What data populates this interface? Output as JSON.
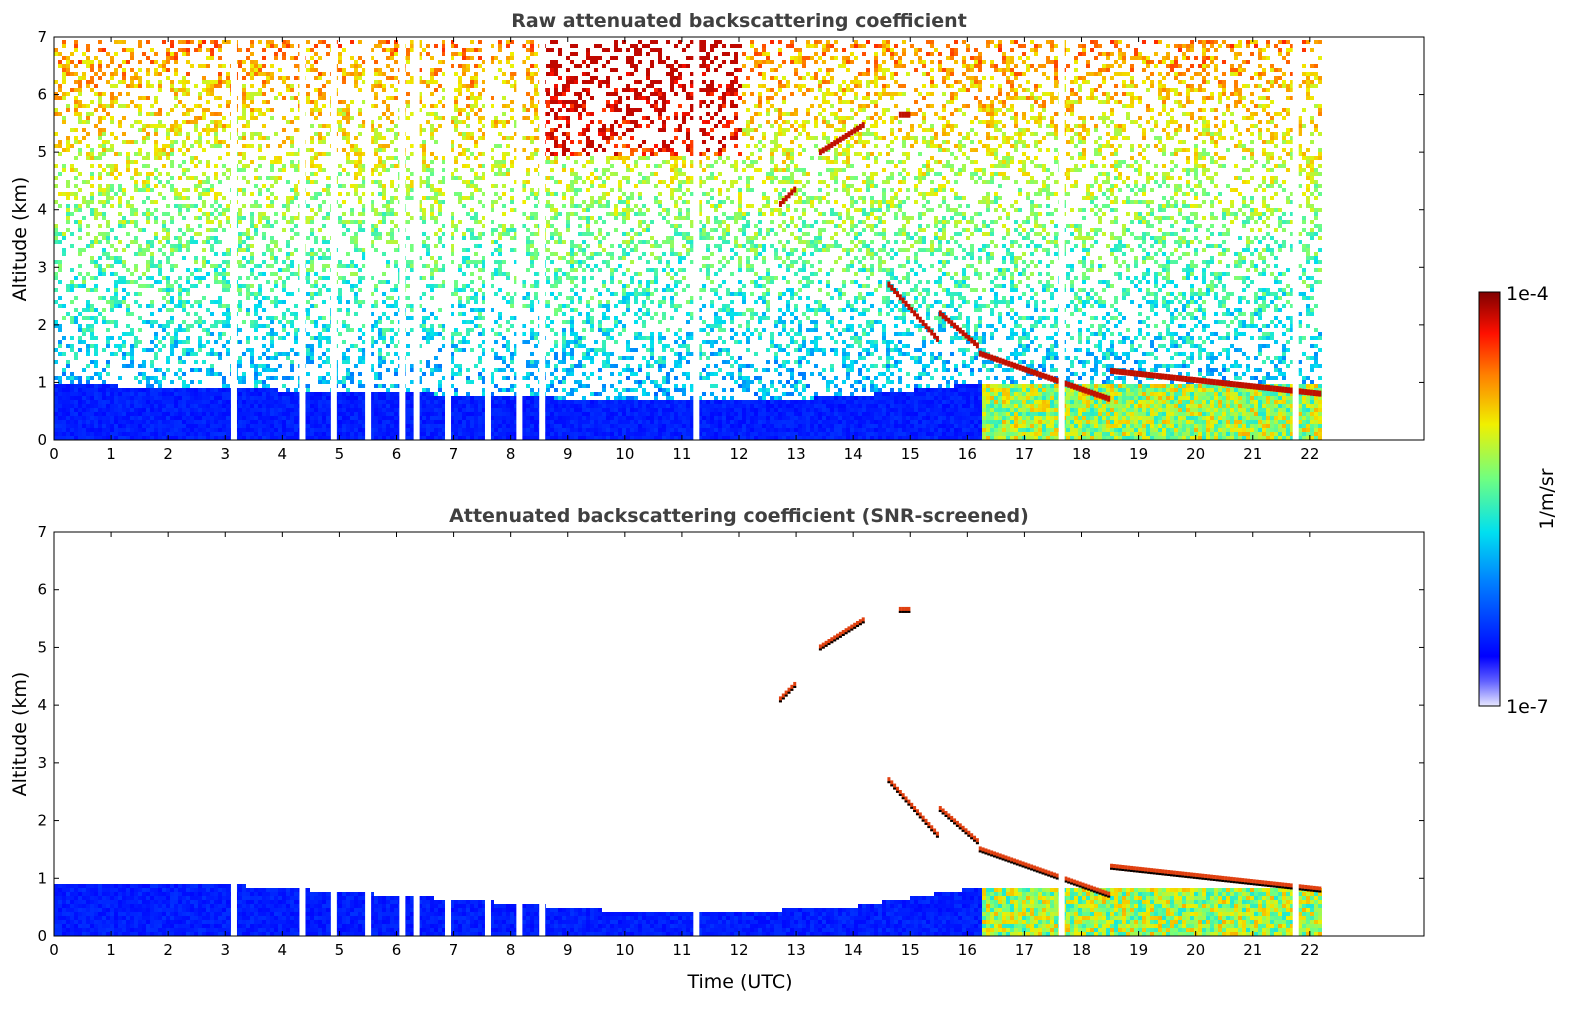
{
  "chart_data": [
    {
      "type": "heatmap",
      "title": "Raw attenuated backscattering coefficient",
      "xlabel": "",
      "ylabel": "Altitude (km)",
      "xlim": [
        0,
        24
      ],
      "ylim": [
        0,
        7
      ],
      "xticks": [
        "0",
        "1",
        "2",
        "3",
        "4",
        "5",
        "6",
        "7",
        "8",
        "9",
        "10",
        "11",
        "12",
        "13",
        "14",
        "15",
        "16",
        "17",
        "18",
        "19",
        "20",
        "21",
        "22"
      ],
      "yticks": [
        "0",
        "1",
        "2",
        "3",
        "4",
        "5",
        "6",
        "7"
      ],
      "data_end_hour": 22.2,
      "boundary_layer_top_km": [
        [
          0,
          1.0
        ],
        [
          4,
          0.9
        ],
        [
          8,
          0.8
        ],
        [
          10,
          0.7
        ],
        [
          12,
          0.7
        ],
        [
          14,
          0.8
        ],
        [
          16,
          1.0
        ]
      ],
      "cloud_layers": [
        {
          "t0": 13.4,
          "t1": 14.2,
          "alt0": 5.0,
          "alt1": 5.5
        },
        {
          "t0": 14.8,
          "t1": 15.0,
          "alt0": 5.65,
          "alt1": 5.65
        },
        {
          "t0": 12.7,
          "t1": 13.0,
          "alt0": 4.1,
          "alt1": 4.4
        },
        {
          "t0": 14.6,
          "t1": 15.5,
          "alt0": 2.7,
          "alt1": 1.7
        },
        {
          "t0": 15.5,
          "t1": 16.2,
          "alt0": 2.2,
          "alt1": 1.6
        },
        {
          "t0": 16.2,
          "t1": 18.5,
          "alt0": 1.5,
          "alt1": 0.7
        },
        {
          "t0": 18.5,
          "t1": 22.2,
          "alt0": 1.2,
          "alt1": 0.8
        }
      ]
    },
    {
      "type": "heatmap",
      "title": "Attenuated backscattering coefficient (SNR-screened)",
      "xlabel": "Time (UTC)",
      "ylabel": "Altitude (km)",
      "xlim": [
        0,
        24
      ],
      "ylim": [
        0,
        7
      ],
      "xticks": [
        "0",
        "1",
        "2",
        "3",
        "4",
        "5",
        "6",
        "7",
        "8",
        "9",
        "10",
        "11",
        "12",
        "13",
        "14",
        "15",
        "16",
        "17",
        "18",
        "19",
        "20",
        "21",
        "22"
      ],
      "yticks": [
        "0",
        "1",
        "2",
        "3",
        "4",
        "5",
        "6",
        "7"
      ],
      "data_end_hour": 22.2,
      "boundary_layer_top_km": [
        [
          0,
          0.95
        ],
        [
          2.5,
          0.95
        ],
        [
          5,
          0.8
        ],
        [
          8,
          0.6
        ],
        [
          10,
          0.45
        ],
        [
          12,
          0.45
        ],
        [
          14,
          0.55
        ],
        [
          16,
          0.85
        ]
      ]
    }
  ],
  "colorbar": {
    "label": "1/m/sr",
    "max_label": "1e-4",
    "min_label": "1e-7",
    "scale": "log",
    "range": [
      1e-07,
      0.0001
    ]
  }
}
